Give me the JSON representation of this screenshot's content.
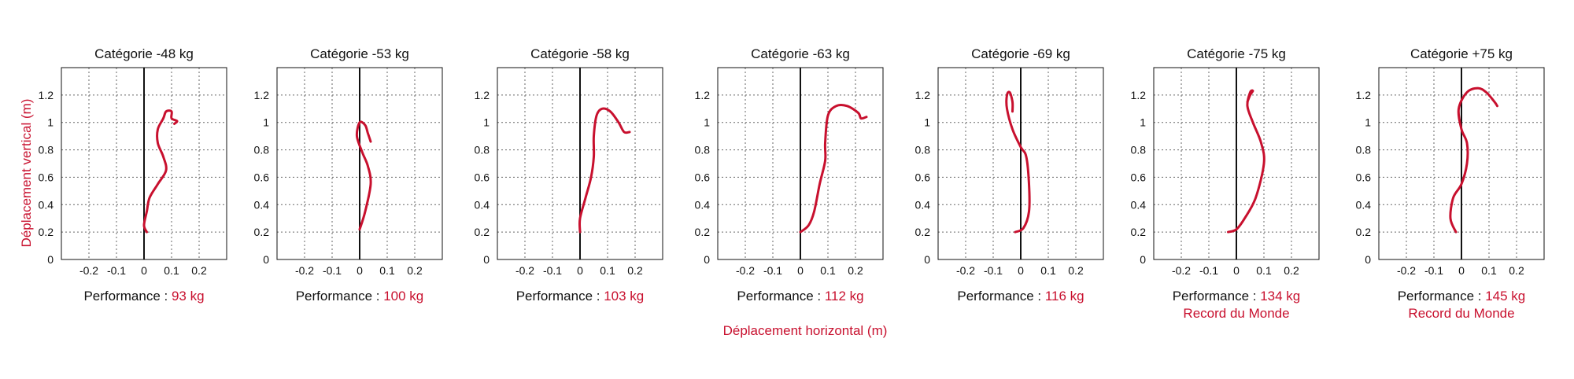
{
  "axis_labels": {
    "y": "Déplacement vertical (m)",
    "x": "Déplacement horizontal (m)"
  },
  "performance_label": "Performance :",
  "colors": {
    "trajectory": "#c8102e",
    "grid": "#666666",
    "axis": "#111111"
  },
  "chart_data": [
    {
      "type": "line",
      "title": "Catégorie -48 kg",
      "performance_value": "93 kg",
      "note": "",
      "xticks": [
        "-0.2",
        "-0.1",
        "0",
        "0.1",
        "0.2"
      ],
      "yticks": [
        "0",
        "0.2",
        "0.4",
        "0.6",
        "0.8",
        "1",
        "1.2"
      ],
      "xlim": [
        -0.3,
        0.3
      ],
      "ylim": [
        0,
        1.4
      ],
      "grid": true,
      "x": [
        0.01,
        0.0,
        0.01,
        0.02,
        0.05,
        0.08,
        0.07,
        0.05,
        0.05,
        0.07,
        0.08,
        0.1,
        0.1,
        0.12,
        0.11
      ],
      "y": [
        0.2,
        0.25,
        0.35,
        0.45,
        0.55,
        0.65,
        0.75,
        0.85,
        0.95,
        1.03,
        1.08,
        1.08,
        1.03,
        1.01,
        0.99
      ]
    },
    {
      "type": "line",
      "title": "Catégorie -53 kg",
      "performance_value": "100 kg",
      "note": "",
      "xticks": [
        "-0.2",
        "-0.1",
        "0",
        "0.1",
        "0.2"
      ],
      "yticks": [
        "0",
        "0.2",
        "0.4",
        "0.6",
        "0.8",
        "1",
        "1.2"
      ],
      "xlim": [
        -0.3,
        0.3
      ],
      "ylim": [
        0,
        1.4
      ],
      "grid": true,
      "x": [
        0.0,
        0.02,
        0.04,
        0.03,
        0.01,
        -0.01,
        0.0,
        0.02,
        0.03,
        0.04
      ],
      "y": [
        0.22,
        0.35,
        0.55,
        0.68,
        0.78,
        0.9,
        1.0,
        0.98,
        0.92,
        0.86
      ]
    },
    {
      "type": "line",
      "title": "Catégorie -58 kg",
      "performance_value": "103 kg",
      "note": "",
      "xticks": [
        "-0.2",
        "-0.1",
        "0",
        "0.1",
        "0.2"
      ],
      "yticks": [
        "0",
        "0.2",
        "0.4",
        "0.6",
        "0.8",
        "1",
        "1.2"
      ],
      "xlim": [
        -0.3,
        0.3
      ],
      "ylim": [
        0,
        1.4
      ],
      "grid": true,
      "x": [
        0.0,
        0.0,
        0.02,
        0.04,
        0.05,
        0.05,
        0.06,
        0.08,
        0.11,
        0.14,
        0.16,
        0.18
      ],
      "y": [
        0.2,
        0.3,
        0.45,
        0.6,
        0.75,
        0.9,
        1.05,
        1.1,
        1.08,
        1.0,
        0.93,
        0.93
      ]
    },
    {
      "type": "line",
      "title": "Catégorie -63 kg",
      "performance_value": "112 kg",
      "note": "",
      "xticks": [
        "-0.2",
        "-0.1",
        "0",
        "0.1",
        "0.2"
      ],
      "yticks": [
        "0",
        "0.2",
        "0.4",
        "0.6",
        "0.8",
        "1",
        "1.2"
      ],
      "xlim": [
        -0.3,
        0.3
      ],
      "ylim": [
        0,
        1.4
      ],
      "grid": true,
      "x": [
        0.0,
        0.03,
        0.05,
        0.07,
        0.09,
        0.09,
        0.1,
        0.13,
        0.17,
        0.21,
        0.22,
        0.24
      ],
      "y": [
        0.2,
        0.25,
        0.35,
        0.55,
        0.72,
        0.85,
        1.05,
        1.12,
        1.12,
        1.07,
        1.03,
        1.04
      ]
    },
    {
      "type": "line",
      "title": "Catégorie -69 kg",
      "performance_value": "116 kg",
      "note": "",
      "xticks": [
        "-0.2",
        "-0.1",
        "0",
        "0.1",
        "0.2"
      ],
      "yticks": [
        "0",
        "0.2",
        "0.4",
        "0.6",
        "0.8",
        "1",
        "1.2"
      ],
      "xlim": [
        -0.3,
        0.3
      ],
      "ylim": [
        0,
        1.4
      ],
      "grid": true,
      "x": [
        -0.02,
        0.01,
        0.03,
        0.03,
        0.02,
        0.0,
        -0.03,
        -0.05,
        -0.05,
        -0.04,
        -0.03,
        -0.03
      ],
      "y": [
        0.2,
        0.23,
        0.35,
        0.55,
        0.75,
        0.82,
        0.95,
        1.1,
        1.2,
        1.22,
        1.15,
        1.08
      ]
    },
    {
      "type": "line",
      "title": "Catégorie -75 kg",
      "performance_value": "134 kg",
      "note": "Record du Monde",
      "xticks": [
        "-0.2",
        "-0.1",
        "0",
        "0.1",
        "0.2"
      ],
      "yticks": [
        "0",
        "0.2",
        "0.4",
        "0.6",
        "0.8",
        "1",
        "1.2"
      ],
      "xlim": [
        -0.3,
        0.3
      ],
      "ylim": [
        0,
        1.4
      ],
      "grid": true,
      "x": [
        -0.03,
        0.0,
        0.03,
        0.07,
        0.1,
        0.09,
        0.06,
        0.04,
        0.05,
        0.06,
        0.05,
        0.04
      ],
      "y": [
        0.2,
        0.22,
        0.3,
        0.45,
        0.7,
        0.85,
        1.0,
        1.12,
        1.22,
        1.23,
        1.2,
        1.15
      ]
    },
    {
      "type": "line",
      "title": "Catégorie +75 kg",
      "performance_value": "145 kg",
      "note": "Record du Monde",
      "xticks": [
        "-0.2",
        "-0.1",
        "0",
        "0.1",
        "0.2"
      ],
      "yticks": [
        "0",
        "0.2",
        "0.4",
        "0.6",
        "0.8",
        "1",
        "1.2"
      ],
      "xlim": [
        -0.3,
        0.3
      ],
      "ylim": [
        0,
        1.4
      ],
      "grid": true,
      "x": [
        -0.02,
        -0.04,
        -0.03,
        0.0,
        0.02,
        0.02,
        0.0,
        -0.01,
        0.02,
        0.06,
        0.09,
        0.12,
        0.13
      ],
      "y": [
        0.2,
        0.3,
        0.45,
        0.55,
        0.7,
        0.85,
        0.95,
        1.1,
        1.22,
        1.25,
        1.22,
        1.15,
        1.12
      ]
    }
  ]
}
